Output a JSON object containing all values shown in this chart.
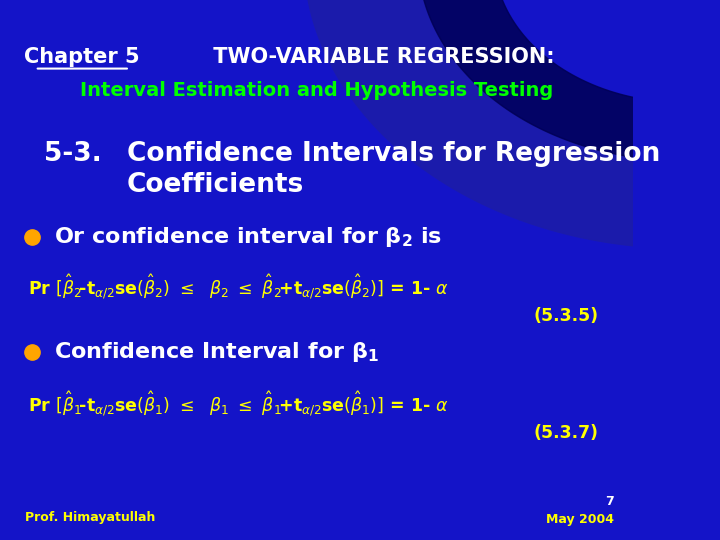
{
  "bg_color": "#1414c8",
  "title_line1_chapter": "Chapter 5",
  "title_line1_rest": " TWO-VARIABLE REGRESSION:",
  "title_line2": "Interval Estimation and Hypothesis Testing",
  "section_num": "5-3.",
  "section_title1": "Confidence Intervals for Regression",
  "section_title2": "Coefficients",
  "ref1": "(5.3.5)",
  "ref2": "(5.3.7)",
  "footer_left": "Prof. Himayatullah",
  "footer_right_num": "7",
  "footer_right_date": "May 2004",
  "white": "#ffffff",
  "yellow": "#ffff00",
  "green": "#00ff00",
  "orange": "#ffa500",
  "swoosh_color": "#2222cc",
  "swoosh_dark": "#000066"
}
